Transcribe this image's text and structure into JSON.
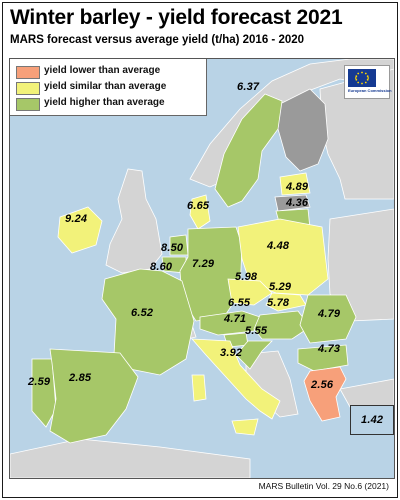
{
  "header": {
    "title": "Winter barley - yield forecast 2021",
    "subtitle": "MARS forecast versus average yield (t/ha) 2016 - 2020"
  },
  "legend": {
    "items": [
      {
        "label": "yield lower than average",
        "color": "#f7a07a"
      },
      {
        "label": "yield similar than average",
        "color": "#f2f27a"
      },
      {
        "label": "yield higher than average",
        "color": "#a6c768"
      }
    ]
  },
  "logo": {
    "caption": "European Commission"
  },
  "colors": {
    "sea": "#b9d3e6",
    "non_eu": "#d4d4d4",
    "no_data": "#9a9a9a",
    "lower": "#f7a07a",
    "similar": "#f2f27a",
    "higher": "#a6c768",
    "border": "#ffffff"
  },
  "countries": {
    "sweden": {
      "value": "6.37",
      "class": "higher"
    },
    "estonia": {
      "value": "4.89",
      "class": "similar"
    },
    "lithuania": {
      "value": "4.36",
      "class": "higher"
    },
    "ireland": {
      "value": "9.24",
      "class": "similar"
    },
    "denmark": {
      "value": "6.65",
      "class": "similar"
    },
    "netherlands": {
      "value": "8.50",
      "class": "higher"
    },
    "belgium": {
      "value": "8.60",
      "class": "higher"
    },
    "germany": {
      "value": "7.29",
      "class": "higher"
    },
    "poland": {
      "value": "4.48",
      "class": "similar"
    },
    "czechia": {
      "value": "5.98",
      "class": "similar"
    },
    "slovakia": {
      "value": "5.29",
      "class": "similar"
    },
    "austria": {
      "value": "6.55",
      "class": "higher"
    },
    "hungary": {
      "value": "5.78",
      "class": "higher"
    },
    "slovenia": {
      "value": "4.71",
      "class": "higher"
    },
    "croatia": {
      "value": "5.55",
      "class": "higher"
    },
    "romania": {
      "value": "4.79",
      "class": "higher"
    },
    "bulgaria": {
      "value": "4.73",
      "class": "higher"
    },
    "france": {
      "value": "6.52",
      "class": "higher"
    },
    "italy": {
      "value": "3.92",
      "class": "similar"
    },
    "greece": {
      "value": "2.56",
      "class": "lower"
    },
    "portugal": {
      "value": "2.59",
      "class": "higher"
    },
    "spain": {
      "value": "2.85",
      "class": "higher"
    },
    "cyprus": {
      "value": "1.42",
      "class": "similar"
    }
  },
  "footer": {
    "text": "MARS Bulletin Vol. 29 No.6 (2021)"
  }
}
